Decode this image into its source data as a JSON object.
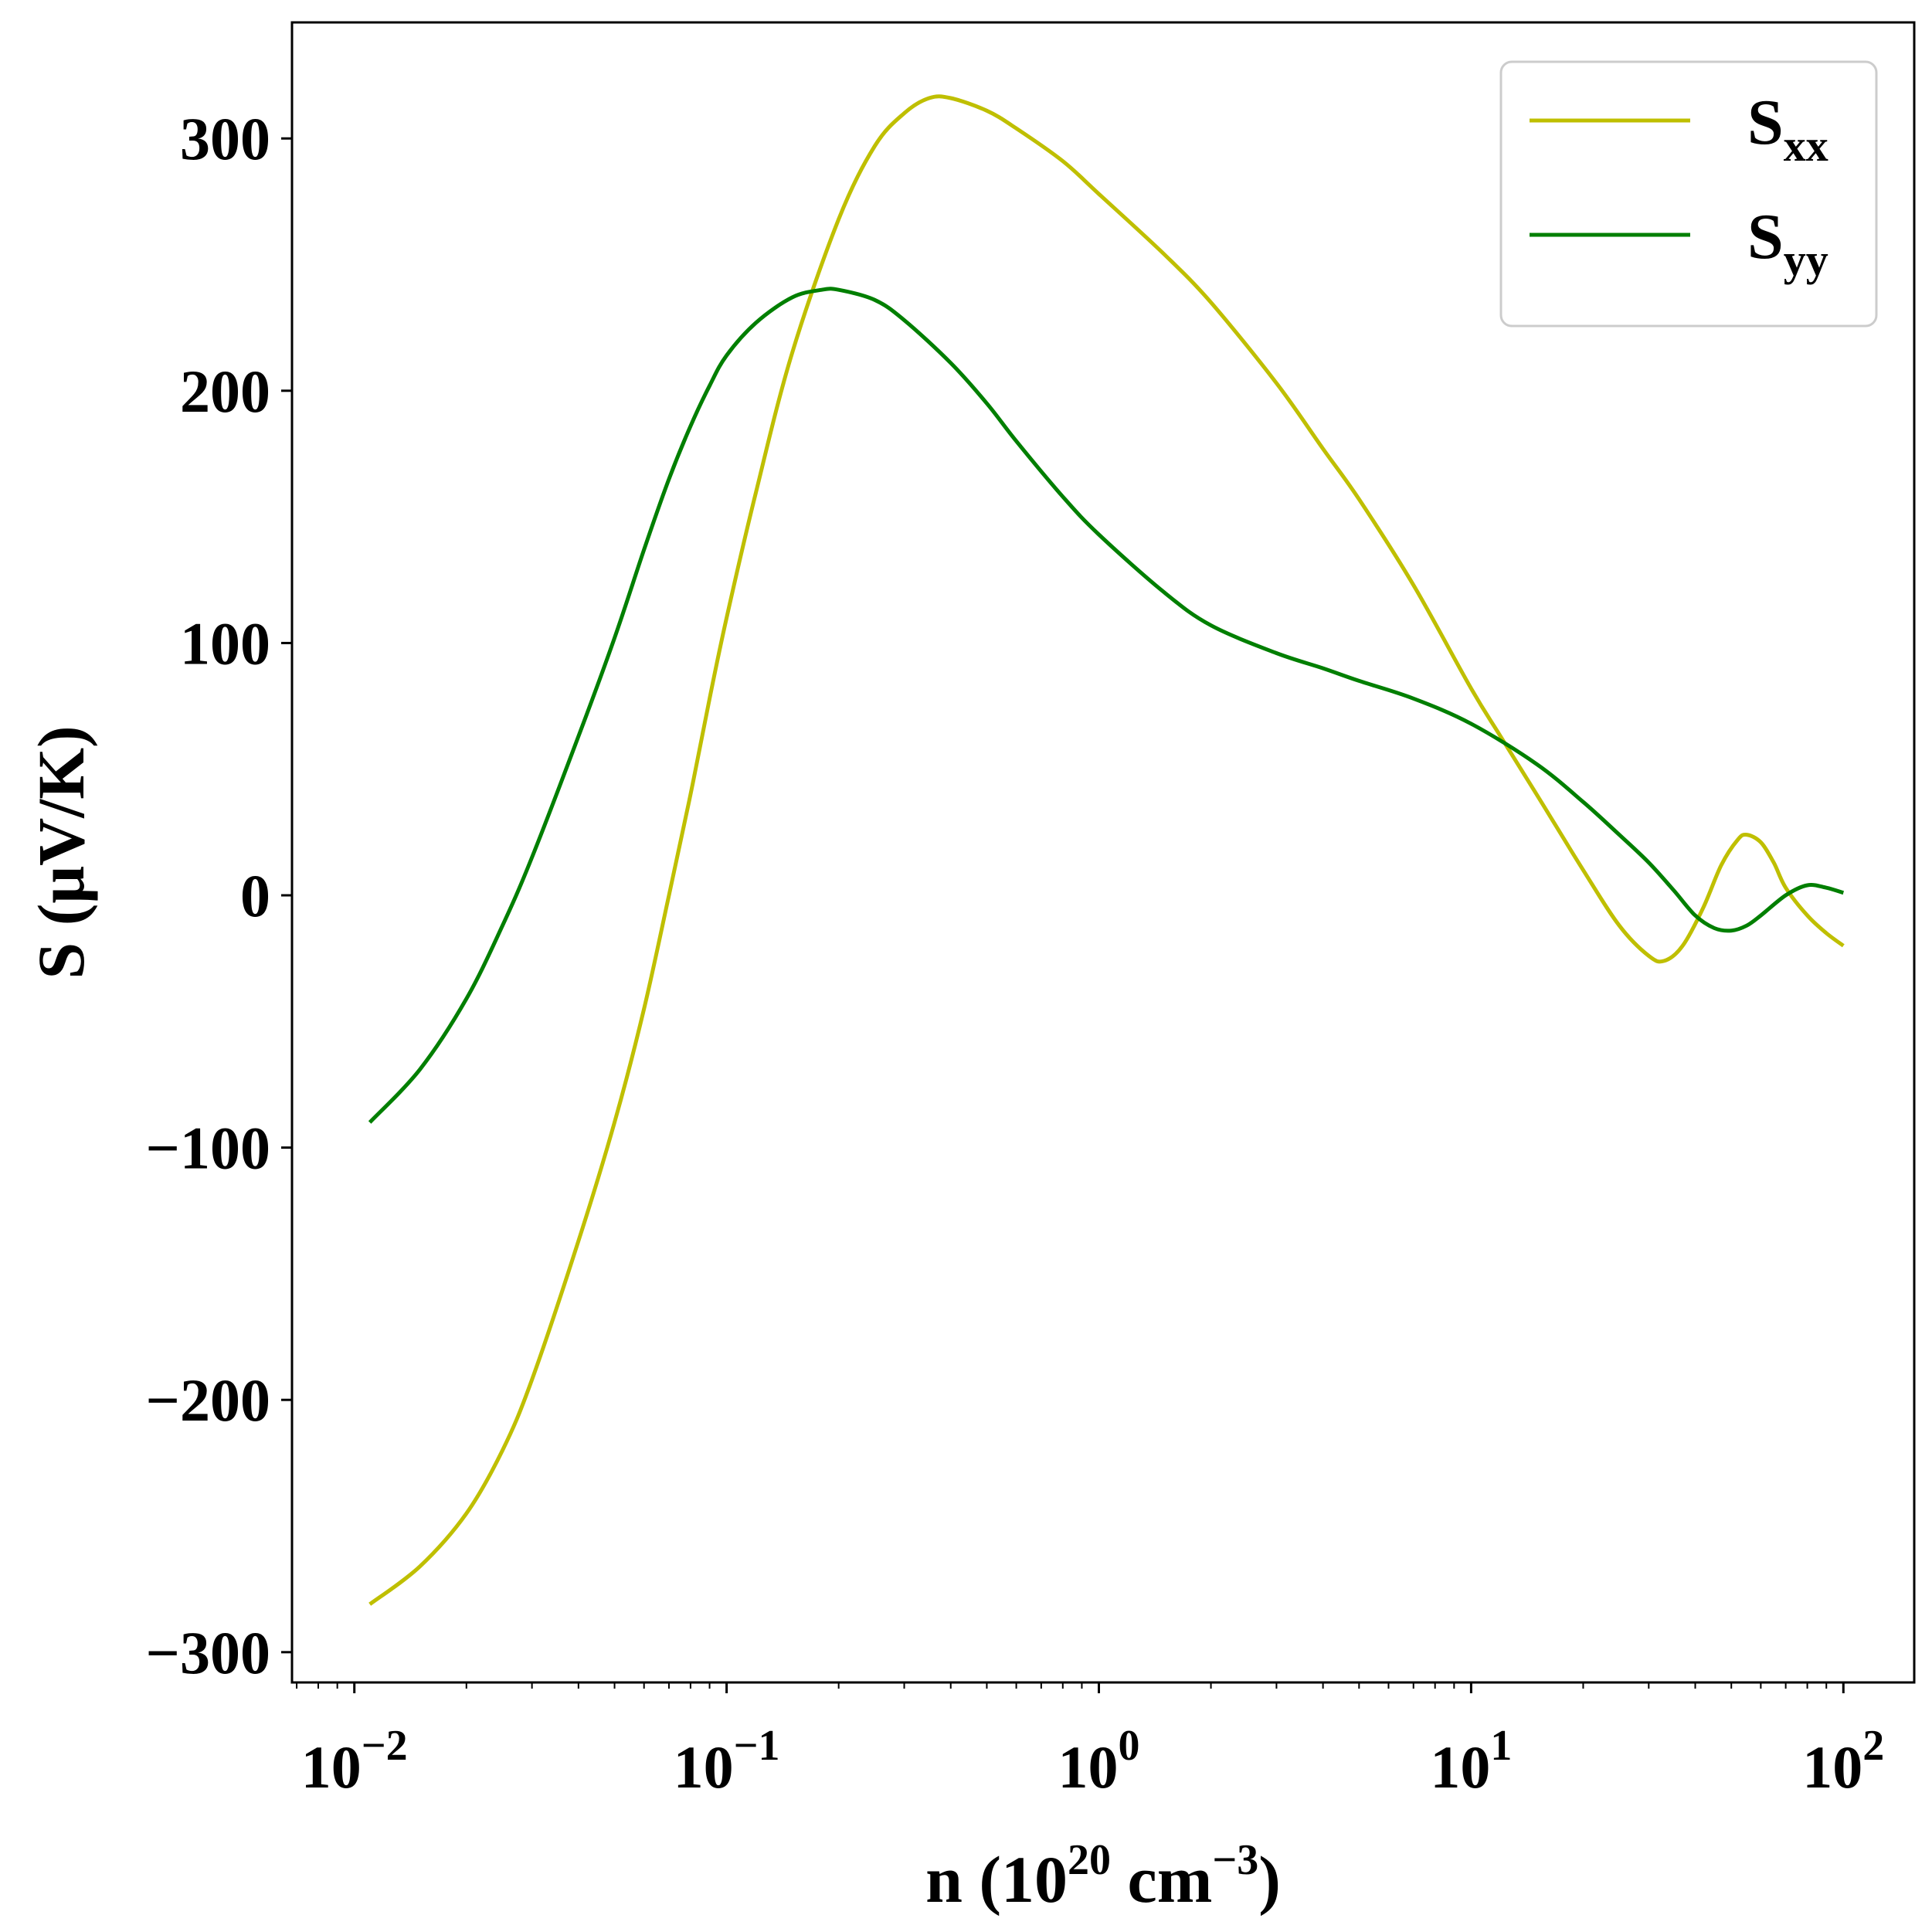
{
  "chart_data": {
    "type": "line",
    "xscale": "log",
    "xlabel": {
      "main": "n (10",
      "sup1": "20",
      "mid": " cm",
      "sup2": "−3",
      "end": ")"
    },
    "ylabel": "S (μV/K)",
    "xlim": [
      0.0068,
      155
    ],
    "ylim": [
      -312,
      346
    ],
    "xticks": [
      {
        "value": 0.01,
        "base": "10",
        "exp": "−2"
      },
      {
        "value": 0.1,
        "base": "10",
        "exp": "−1"
      },
      {
        "value": 1,
        "base": "10",
        "exp": "0"
      },
      {
        "value": 10,
        "base": "10",
        "exp": "1"
      },
      {
        "value": 100,
        "base": "10",
        "exp": "2"
      }
    ],
    "yticks": [
      {
        "value": -300,
        "label": "−300"
      },
      {
        "value": -200,
        "label": "−200"
      },
      {
        "value": -100,
        "label": "−100"
      },
      {
        "value": 0,
        "label": "0"
      },
      {
        "value": 100,
        "label": "100"
      },
      {
        "value": 200,
        "label": "200"
      },
      {
        "value": 300,
        "label": "300"
      }
    ],
    "grid": false,
    "legend_position": "top-right",
    "series": [
      {
        "name": "S",
        "subscript": "xx",
        "color": "#bfbf00",
        "x": [
          0.011,
          0.015,
          0.02,
          0.025,
          0.03,
          0.04,
          0.05,
          0.06,
          0.07,
          0.08,
          0.09,
          0.1,
          0.12,
          0.15,
          0.2,
          0.25,
          0.3,
          0.35,
          0.4,
          0.5,
          0.6,
          0.8,
          1.0,
          1.5,
          2.0,
          3.0,
          4.0,
          5.0,
          7.0,
          10.0,
          12.0,
          15.0,
          20.0,
          25.0,
          30.0,
          33.0,
          37.0,
          42.0,
          47.0,
          52.0,
          55.0,
          60.0,
          65.0,
          70.0,
          80.0,
          90.0,
          100.0
        ],
        "values": [
          -281,
          -266,
          -245,
          -220,
          -192,
          -137,
          -90,
          -45,
          0,
          40,
          78,
          110,
          160,
          215,
          268,
          297,
          310,
          316,
          316,
          311,
          304,
          291,
          278,
          254,
          235,
          203,
          177,
          157,
          123,
          82,
          63,
          40,
          10,
          -12,
          -24,
          -26,
          -20,
          -5,
          12,
          22,
          24,
          21,
          13,
          3,
          -8,
          -15,
          -20
        ]
      },
      {
        "name": "S",
        "subscript": "yy",
        "color": "#007f00",
        "x": [
          0.011,
          0.015,
          0.02,
          0.025,
          0.03,
          0.04,
          0.05,
          0.06,
          0.07,
          0.08,
          0.09,
          0.1,
          0.12,
          0.15,
          0.18,
          0.2,
          0.25,
          0.3,
          0.4,
          0.5,
          0.6,
          0.8,
          1.0,
          1.5,
          2.0,
          3.0,
          4.0,
          5.0,
          7.0,
          10.0,
          15.0,
          20.0,
          25.0,
          30.0,
          35.0,
          40.0,
          45.0,
          50.0,
          55.0,
          60.0,
          70.0,
          80.0,
          90.0,
          100.0
        ],
        "values": [
          -90,
          -69,
          -41,
          -12,
          15,
          63,
          102,
          137,
          165,
          186,
          202,
          214,
          227,
          237,
          240,
          240,
          236,
          228,
          211,
          195,
          180,
          158,
          143,
          120,
          107,
          96,
          90,
          85,
          78,
          68,
          52,
          37,
          24,
          13,
          2,
          -8,
          -13,
          -14,
          -12,
          -8,
          0,
          4,
          3,
          1
        ]
      }
    ]
  }
}
